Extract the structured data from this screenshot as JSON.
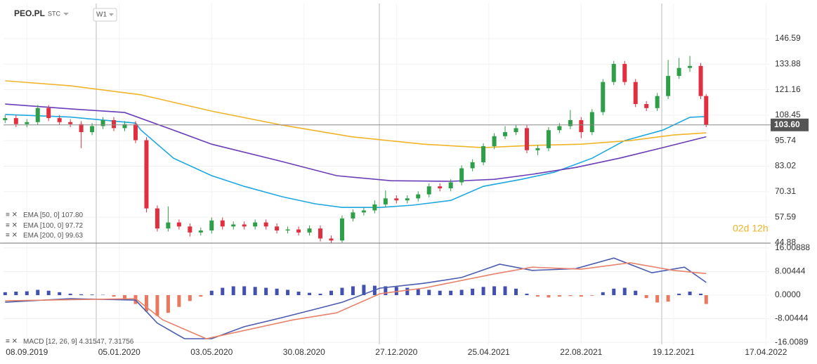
{
  "header": {
    "symbol": "PEO.PL",
    "exchange": "STC",
    "interval": "W1"
  },
  "chart_data": [
    {
      "type": "candlestick",
      "x": [
        -4,
        -2,
        0,
        2,
        4,
        6,
        8,
        10,
        12,
        14,
        16,
        18,
        20,
        22,
        24,
        26,
        28,
        30,
        32,
        34,
        36,
        38,
        40,
        42,
        44,
        46,
        48,
        50,
        52,
        54,
        56,
        58,
        60,
        62,
        64,
        66,
        68,
        70,
        72,
        74,
        76,
        78,
        80,
        82,
        84,
        86,
        88,
        90,
        92,
        94,
        96,
        98,
        100,
        102,
        104,
        106,
        108,
        110,
        112,
        114,
        116,
        118,
        120,
        122,
        124,
        125
      ],
      "ohlc": [
        [
          106,
          108.5,
          104.5,
          107
        ],
        [
          107,
          108.5,
          102.5,
          104
        ],
        [
          104,
          106.5,
          102.5,
          105
        ],
        [
          105,
          113.5,
          103.5,
          112
        ],
        [
          112,
          113.5,
          105.5,
          107
        ],
        [
          107,
          108.5,
          103.5,
          105
        ],
        [
          105,
          106.5,
          102.5,
          104
        ],
        [
          104,
          105.5,
          92,
          100
        ],
        [
          100,
          104.5,
          98.5,
          103
        ],
        [
          103,
          107.5,
          101.5,
          106
        ],
        [
          106,
          107.5,
          100.5,
          102
        ],
        [
          102,
          105.5,
          100.5,
          104
        ],
        [
          104,
          105.5,
          94.5,
          96
        ],
        [
          96,
          97.5,
          60,
          62
        ],
        [
          62,
          63.5,
          50.5,
          52
        ],
        [
          52,
          63,
          50.5,
          55
        ],
        [
          55,
          56.5,
          51.5,
          53
        ],
        [
          53,
          54.5,
          48,
          50
        ],
        [
          50,
          52.5,
          48.5,
          51
        ],
        [
          51,
          57.5,
          49.5,
          56
        ],
        [
          56,
          57.5,
          51.5,
          53
        ],
        [
          53,
          55.5,
          51.5,
          54
        ],
        [
          54,
          55.5,
          51.5,
          53
        ],
        [
          53,
          56.5,
          51.5,
          55
        ],
        [
          55,
          56.5,
          51.5,
          53
        ],
        [
          53,
          54.5,
          49.5,
          51
        ],
        [
          51,
          53,
          49.5,
          51.5
        ],
        [
          51.5,
          53,
          48.5,
          50
        ],
        [
          50,
          53.5,
          48.5,
          52
        ],
        [
          52,
          53.5,
          45.5,
          47
        ],
        [
          47,
          48.5,
          44.8,
          46
        ],
        [
          46,
          58.5,
          45,
          57
        ],
        [
          57,
          61.5,
          55.5,
          60
        ],
        [
          60,
          62.5,
          58.5,
          61
        ],
        [
          61,
          66,
          59.5,
          64
        ],
        [
          64,
          71,
          62.5,
          67
        ],
        [
          67,
          68.5,
          64.5,
          66
        ],
        [
          66,
          68.5,
          64.5,
          67
        ],
        [
          67,
          70.5,
          65.5,
          69
        ],
        [
          69,
          74.5,
          67.5,
          73
        ],
        [
          73,
          74.5,
          70.5,
          72
        ],
        [
          72,
          76.5,
          70.5,
          75
        ],
        [
          75,
          83.5,
          73.5,
          82
        ],
        [
          82,
          86.5,
          80.5,
          85
        ],
        [
          85,
          94.5,
          83.5,
          93
        ],
        [
          93,
          99.5,
          91.5,
          98
        ],
        [
          98,
          103,
          96.5,
          100
        ],
        [
          100,
          103.5,
          98.5,
          102
        ],
        [
          102,
          103.5,
          89.5,
          91
        ],
        [
          91,
          93.5,
          88.5,
          92
        ],
        [
          92,
          102.5,
          90.5,
          101
        ],
        [
          101,
          104.5,
          99.5,
          103
        ],
        [
          103,
          111,
          101.5,
          106
        ],
        [
          106,
          107.5,
          97,
          100
        ],
        [
          100,
          111.5,
          98.5,
          110
        ],
        [
          110,
          126.5,
          108.5,
          125
        ],
        [
          125,
          135.5,
          123.5,
          134
        ],
        [
          134,
          135.5,
          123.5,
          125
        ],
        [
          125,
          126.5,
          112.5,
          114
        ],
        [
          114,
          115.5,
          110.5,
          112
        ],
        [
          112,
          119.5,
          110.5,
          118
        ],
        [
          118,
          136,
          116.5,
          128
        ],
        [
          128,
          137,
          126.5,
          132
        ],
        [
          132,
          138,
          130,
          133
        ],
        [
          133,
          134.5,
          116.5,
          118
        ],
        [
          118,
          119,
          102.5,
          103.6
        ]
      ],
      "up_color": "#2e9e49",
      "down_color": "#e0303f",
      "series": [
        {
          "name": "EMA [50, 0]",
          "last_label": "107.80",
          "color": "#1ea7e1",
          "x": [
            -4,
            8,
            20,
            21,
            27,
            34,
            40,
            47,
            53,
            58,
            65,
            71,
            78,
            84,
            91,
            97,
            104,
            110,
            117,
            122,
            125
          ],
          "values": [
            108.8,
            107.5,
            104.5,
            101,
            87,
            78.3,
            73,
            67.8,
            64.3,
            62.5,
            62.5,
            63.6,
            66,
            73,
            76.5,
            80,
            87,
            95.8,
            101,
            107.4,
            107.8
          ]
        },
        {
          "name": "EMA [100, 0]",
          "last_label": "97.72",
          "color": "#6a3db8",
          "x": [
            -4,
            8,
            18,
            27,
            34,
            47,
            57,
            67,
            78,
            86,
            93,
            101,
            109,
            117,
            125
          ],
          "values": [
            114,
            111.6,
            109.8,
            101,
            94,
            85.3,
            78.3,
            75.8,
            75.5,
            76.5,
            79,
            82.4,
            87,
            92.3,
            97.72
          ]
        },
        {
          "name": "EMA [200, 0]",
          "last_label": "99.63",
          "color": "#f0b429",
          "x": [
            -4,
            8,
            21,
            34,
            47,
            60,
            73,
            84,
            93,
            102,
            111,
            119,
            125
          ],
          "values": [
            125.6,
            123.1,
            118.6,
            110.5,
            103.5,
            97.6,
            94,
            92.3,
            93.4,
            94,
            95.8,
            98.6,
            99.63
          ]
        }
      ],
      "last_price": {
        "value": 103.6,
        "label": "103.60"
      },
      "countdown": "02d 12h",
      "xlim": [
        -4.3,
        136.6
      ],
      "ylim": [
        44.7,
        164.1
      ],
      "yticks": [
        146.59,
        133.88,
        121.16,
        108.45,
        95.74,
        83.02,
        70.31,
        57.59,
        44.88
      ],
      "grid": true
    },
    {
      "type": "macd",
      "name": "MACD [12, 26, 9]",
      "legend_label": "4.31547, 7.31756",
      "x": [
        -4,
        -2,
        0,
        2,
        4,
        6,
        8,
        10,
        12,
        14,
        16,
        18,
        20,
        22,
        24,
        26,
        28,
        30,
        32,
        34,
        36,
        38,
        40,
        42,
        44,
        46,
        48,
        50,
        52,
        54,
        56,
        58,
        60,
        62,
        64,
        66,
        68,
        70,
        72,
        74,
        76,
        78,
        80,
        82,
        84,
        86,
        88,
        90,
        92,
        94,
        96,
        98,
        100,
        102,
        104,
        106,
        108,
        110,
        112,
        114,
        116,
        118,
        120,
        122,
        124,
        125
      ],
      "histogram": [
        1,
        1.2,
        1.3,
        1.8,
        1.5,
        1,
        0.5,
        0.3,
        0.2,
        0.1,
        -0.5,
        -1.5,
        -3,
        -5.5,
        -7,
        -6,
        -4,
        -2,
        -0.5,
        1.5,
        2.5,
        3,
        3,
        2.8,
        2.5,
        2.2,
        1.8,
        1.2,
        0.8,
        0.5,
        1.5,
        2.5,
        3,
        3.5,
        3.2,
        3,
        2.8,
        2.5,
        2,
        1.8,
        1.5,
        1.5,
        1.8,
        2.2,
        2.8,
        3,
        3,
        2.2,
        0.5,
        -0.5,
        -0.8,
        -0.5,
        -0.3,
        -0.5,
        -0.2,
        1,
        2.2,
        2.5,
        1.5,
        -1,
        -2.5,
        -2.2,
        0.5,
        1.2,
        0.5,
        -3
      ],
      "positive_color": "#4450b0",
      "negative_color": "#e9785e",
      "series": [
        {
          "color": "#4a5bb0",
          "x": [
            -4,
            8,
            20,
            24,
            29,
            34,
            40,
            47,
            53,
            58,
            65,
            73,
            80,
            87,
            93,
            101,
            108,
            115,
            121,
            125
          ],
          "values": [
            -2.4,
            -1.2,
            -1.7,
            -9.5,
            -14.8,
            -14.8,
            -10.7,
            -7.6,
            -4.8,
            -2.4,
            2.4,
            4,
            6,
            10.5,
            8.4,
            9,
            12.6,
            7.6,
            9.5,
            4.31547
          ]
        },
        {
          "color": "#e8826a",
          "x": [
            -4,
            20,
            25,
            33,
            40,
            49,
            57,
            65,
            73,
            86,
            93,
            102,
            111,
            119,
            125
          ],
          "values": [
            -1.9,
            -1.2,
            -8.4,
            -14.8,
            -12,
            -8.4,
            -6,
            0.5,
            2.4,
            7.2,
            9.5,
            8.8,
            11,
            8.4,
            7.31756
          ]
        }
      ],
      "xlim": [
        -4.3,
        136.6
      ],
      "ylim": [
        -16.7,
        17.66
      ],
      "yticks": [
        16.00888,
        8.00444,
        {
          "value": 0,
          "label": "0.0000"
        },
        -8.00444,
        -16.0089
      ],
      "xticks": [
        {
          "value": 0,
          "label": "08.09.2019"
        },
        {
          "value": 17,
          "label": "05.01.2020"
        },
        {
          "value": 34,
          "label": "03.05.2020"
        },
        {
          "value": 51,
          "label": "30.08.2020"
        },
        {
          "value": 68,
          "label": "27.12.2020"
        },
        {
          "value": 85,
          "label": "25.04.2021"
        },
        {
          "value": 102,
          "label": "22.08.2021"
        },
        {
          "value": 119,
          "label": "19.12.2021"
        },
        {
          "value": 136,
          "label": "17.04.2022"
        }
      ],
      "grid": true
    }
  ]
}
